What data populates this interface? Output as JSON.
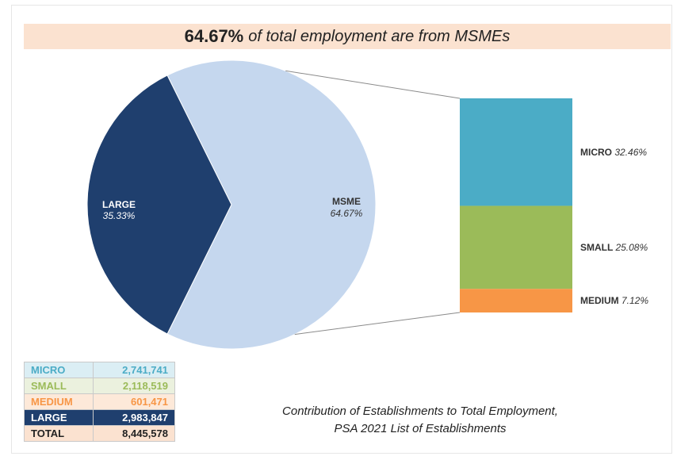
{
  "headline": {
    "percent": "64.67%",
    "text": "of total employment are from MSMEs"
  },
  "chart_data": {
    "type": "pie",
    "title": "",
    "pie": [
      {
        "label": "LARGE",
        "percent_text": "35.33%",
        "value": 35.33,
        "color": "#1f3f6e"
      },
      {
        "label": "MSME",
        "percent_text": "64.67%",
        "value": 64.67,
        "color": "#c5d7ee"
      }
    ],
    "breakdown": [
      {
        "label": "MICRO",
        "percent_text": "32.46%",
        "value": 32.46,
        "color": "#4bacc6"
      },
      {
        "label": "SMALL",
        "percent_text": "25.08%",
        "value": 25.08,
        "color": "#9bbb59"
      },
      {
        "label": "MEDIUM",
        "percent_text": "7.12%",
        "value": 7.12,
        "color": "#f79646"
      }
    ]
  },
  "table": [
    {
      "label": "MICRO",
      "value": "2,741,741",
      "color": "#4bacc6",
      "bg": "#dbeef4"
    },
    {
      "label": "SMALL",
      "value": "2,118,519",
      "color": "#9bbb59",
      "bg": "#ebf1de"
    },
    {
      "label": "MEDIUM",
      "value": "601,471",
      "color": "#f79646",
      "bg": "#fde9d9"
    },
    {
      "label": "LARGE",
      "value": "2,983,847",
      "color": "#ffffff",
      "bg": "#1f3f6e"
    },
    {
      "label": "TOTAL",
      "value": "8,445,578",
      "color": "#222222",
      "bg": "#fbe2d0"
    }
  ],
  "caption": {
    "line1": "Contribution of Establishments to Total Employment,",
    "line2": "PSA 2021 List of Establishments"
  }
}
